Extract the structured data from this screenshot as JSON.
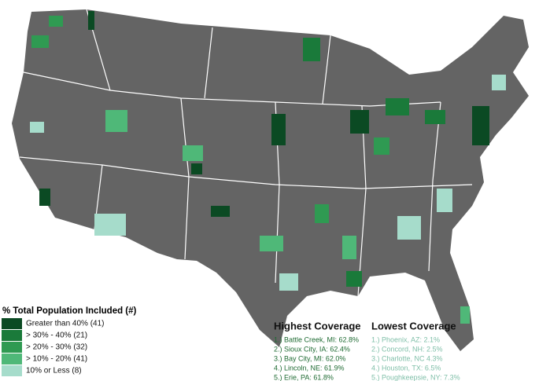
{
  "legend": {
    "title": "% Total Population Included (#)",
    "items": [
      {
        "label": "Greater than 40% (41)",
        "color": "#0b4a23"
      },
      {
        "label": "> 30% - 40% (21)",
        "color": "#1a7a3a"
      },
      {
        "label": "> 20% - 30% (32)",
        "color": "#2f9a52"
      },
      {
        "label": "> 10% - 20% (41)",
        "color": "#4fb878"
      },
      {
        "label": "10% or Less (8)",
        "color": "#a6dccb"
      }
    ]
  },
  "highest_coverage": {
    "title": "Highest Coverage",
    "color": "#1f6b33",
    "items": [
      "1.) Battle Creek, MI: 62.8%",
      "2.) Sioux City, IA: 62.4%",
      "3.) Bay City, MI: 62.0%",
      "4.) Lincoln, NE: 61.9%",
      "5.) Erie, PA: 61.8%"
    ]
  },
  "lowest_coverage": {
    "title": "Lowest Coverage",
    "color": "#7fbfa8",
    "items": [
      "1.) Phoenix, AZ: 2.1%",
      "2.) Concord, NH: 2.5%",
      "3.) Charlotte, NC 4.3%",
      "4.) Houston, TX: 6.5%",
      "5.) Poughkeepsie, NY: 7.3%"
    ]
  }
}
